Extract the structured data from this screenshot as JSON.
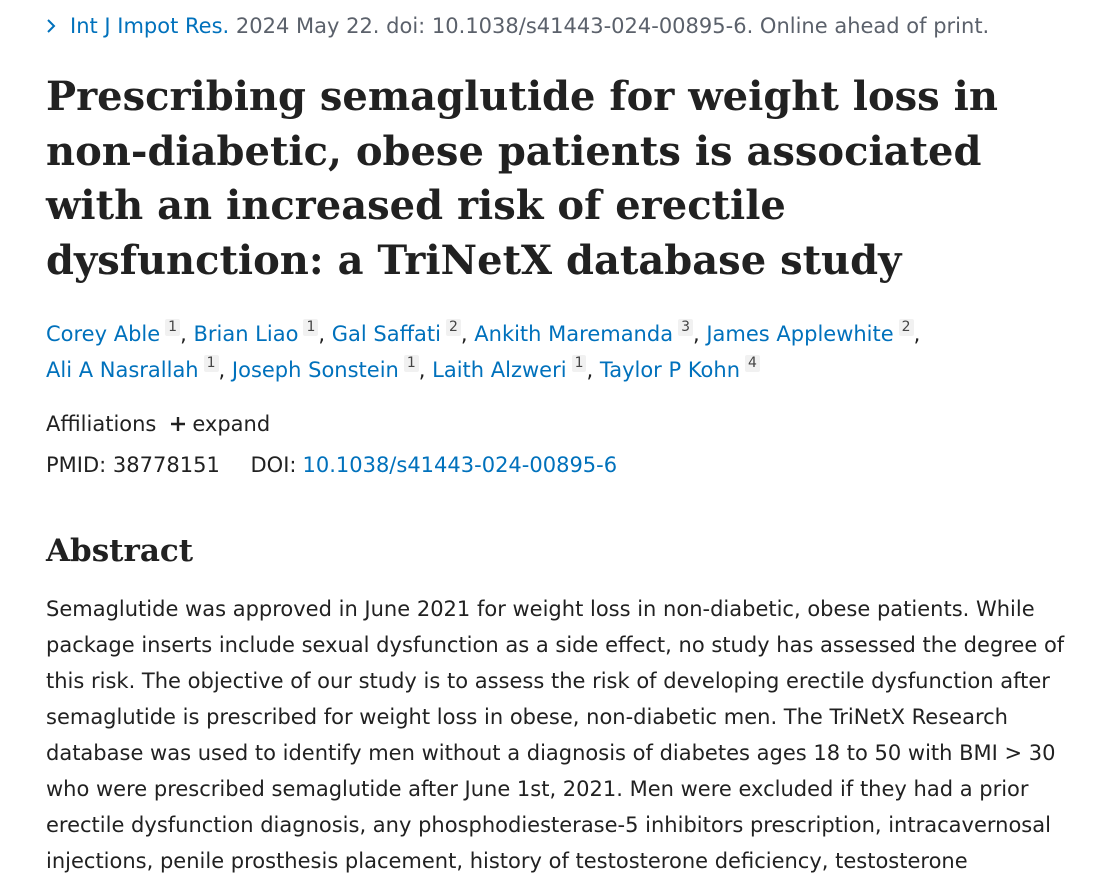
{
  "citation": {
    "journal": "Int J Impot Res.",
    "rest": " 2024 May 22. doi: 10.1038/s41443-024-00895-6. Online ahead of print."
  },
  "title": "Prescribing semaglutide for weight loss in non-diabetic, obese patients is associated with an increased risk of erectile dysfunction: a TriNetX database study",
  "authors": [
    {
      "name": "Corey Able",
      "affil": "1"
    },
    {
      "name": "Brian Liao",
      "affil": "1"
    },
    {
      "name": "Gal Saffati",
      "affil": "2"
    },
    {
      "name": "Ankith Maremanda",
      "affil": "3"
    },
    {
      "name": "James Applewhite",
      "affil": "2"
    },
    {
      "name": "Ali A Nasrallah",
      "affil": "1"
    },
    {
      "name": "Joseph Sonstein",
      "affil": "1"
    },
    {
      "name": "Laith Alzweri",
      "affil": "1"
    },
    {
      "name": "Taylor P Kohn",
      "affil": "4"
    }
  ],
  "author_separator": ", ",
  "affiliations": {
    "label": "Affiliations",
    "expand_label": "expand"
  },
  "ids": {
    "pmid_label": "PMID:",
    "pmid": "38778151",
    "doi_label": "DOI:",
    "doi": "10.1038/s41443-024-00895-6"
  },
  "abstract": {
    "heading": "Abstract",
    "text": "Semaglutide was approved in June 2021 for weight loss in non-diabetic, obese patients. While package inserts include sexual dysfunction as a side effect, no study has assessed the degree of this risk. The objective of our study is to assess the risk of developing erectile dysfunction after semaglutide is prescribed for weight loss in obese, non-diabetic men. The TriNetX Research database was used to identify men without a diagnosis of diabetes ages 18 to 50 with BMI > 30 who were prescribed semaglutide after June 1st, 2021. Men were excluded if they had a prior erectile dysfunction diagnosis, any phosphodiesterase-5 inhibitors prescription, intracavernosal injections, penile prosthesis placement, history of testosterone deficiency, testosterone prescription, pelvic"
  },
  "icons": {
    "citation_chevron": "chevron-right-icon",
    "expand_plus": "plus-icon"
  },
  "colors": {
    "link": "#0071bc",
    "text": "#212121",
    "muted": "#5b616b",
    "sup_bg": "#f1f1f1"
  }
}
